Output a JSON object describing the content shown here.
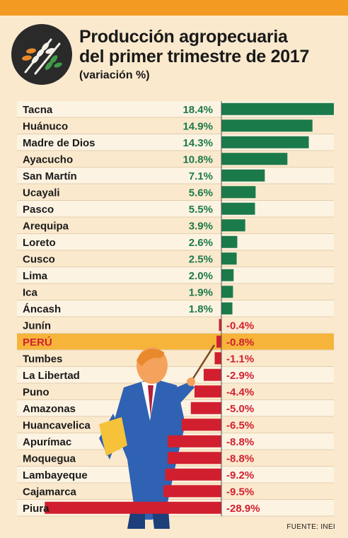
{
  "header": {
    "title_line1": "Producción agropecuaria",
    "title_line2": "del primer trimestre de 2017",
    "subtitle": "(variación %)"
  },
  "source": "FUENTE: INEI",
  "colors": {
    "background": "#fbe9cd",
    "accent": "#f29a22",
    "positive": "#1b7a4a",
    "negative": "#d11f2f",
    "row_alt": "#fdf3e3",
    "highlight": "#f6b43a"
  },
  "chart_data": {
    "type": "bar",
    "orientation": "horizontal",
    "unit": "%",
    "categories": [
      "Tacna",
      "Huánuco",
      "Madre de Dios",
      "Ayacucho",
      "San Martín",
      "Ucayali",
      "Pasco",
      "Arequipa",
      "Loreto",
      "Cusco",
      "Lima",
      "Ica",
      "Áncash",
      "Junín",
      "PERÚ",
      "Tumbes",
      "La Libertad",
      "Puno",
      "Amazonas",
      "Huancavelica",
      "Apurímac",
      "Moquegua",
      "Lambayeque",
      "Cajamarca",
      "Piura"
    ],
    "values": [
      18.4,
      14.9,
      14.3,
      10.8,
      7.1,
      5.6,
      5.5,
      3.9,
      2.6,
      2.5,
      2.0,
      1.9,
      1.8,
      -0.4,
      -0.8,
      -1.1,
      -2.9,
      -4.4,
      -5.0,
      -6.5,
      -8.8,
      -8.8,
      -9.2,
      -9.5,
      -28.9
    ],
    "labels": [
      "18.4%",
      "14.9%",
      "14.3%",
      "10.8%",
      "7.1%",
      "5.6%",
      "5.5%",
      "3.9%",
      "2.6%",
      "2.5%",
      "2.0%",
      "1.9%",
      "1.8%",
      "-0.4%",
      "-0.8%",
      "-1.1%",
      "-2.9%",
      "-4.4%",
      "-5.0%",
      "-6.5%",
      "-8.8%",
      "-8.8%",
      "-9.2%",
      "-9.5%",
      "-28.9%"
    ],
    "highlight_category": "PERÚ"
  }
}
